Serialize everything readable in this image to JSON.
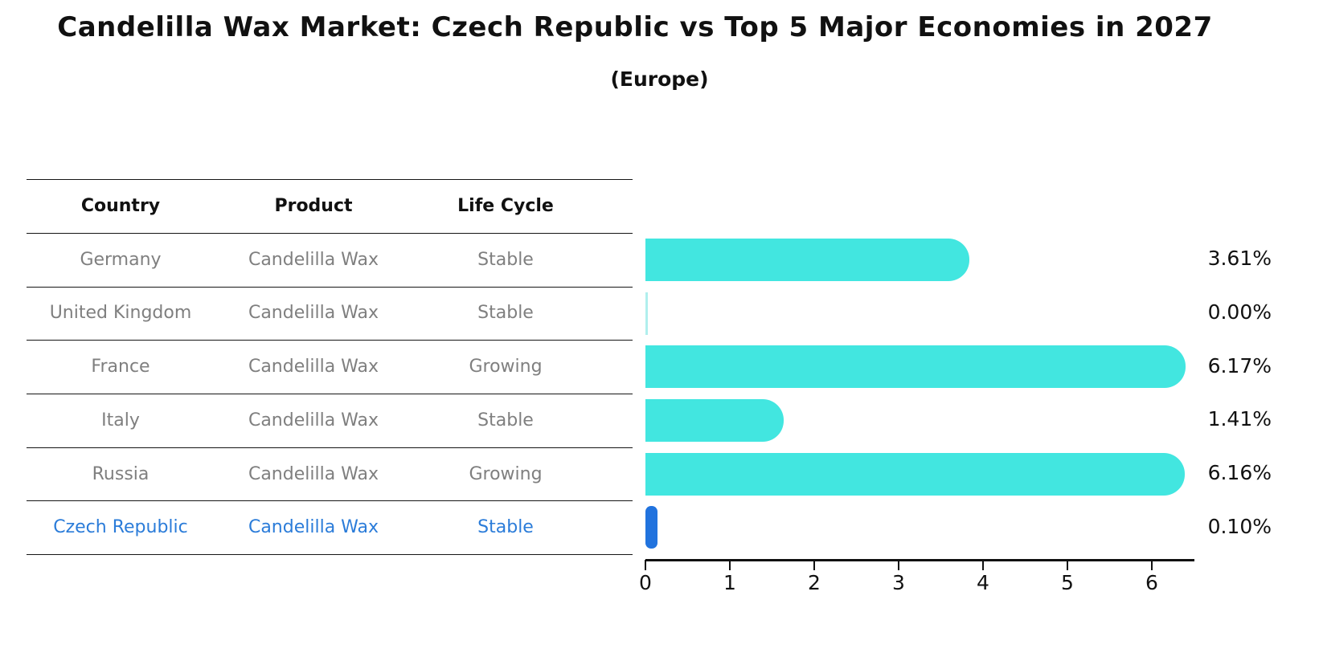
{
  "title": "Candelilla Wax Market: Czech Republic vs Top 5 Major Economies in 2027",
  "subtitle": "(Europe)",
  "table": {
    "headers": [
      "Country",
      "Product",
      "Life Cycle"
    ],
    "rows": [
      {
        "country": "Germany",
        "product": "Candelilla Wax",
        "life_cycle": "Stable",
        "highlight": false
      },
      {
        "country": "United Kingdom",
        "product": "Candelilla Wax",
        "life_cycle": "Stable",
        "highlight": false
      },
      {
        "country": "France",
        "product": "Candelilla Wax",
        "life_cycle": "Growing",
        "highlight": false
      },
      {
        "country": "Italy",
        "product": "Candelilla Wax",
        "life_cycle": "Stable",
        "highlight": false
      },
      {
        "country": "Russia",
        "product": "Candelilla Wax",
        "life_cycle": "Growing",
        "highlight": false
      },
      {
        "country": "Czech Republic",
        "product": "Candelilla Wax",
        "life_cycle": "Stable",
        "highlight": true
      }
    ]
  },
  "chart_data": {
    "type": "bar",
    "orientation": "horizontal",
    "title": "Candelilla Wax Market: Czech Republic vs Top 5 Major Economies in 2027",
    "subtitle": "(Europe)",
    "categories": [
      "Germany",
      "United Kingdom",
      "France",
      "Italy",
      "Russia",
      "Czech Republic"
    ],
    "values": [
      3.61,
      0.0,
      6.17,
      1.41,
      6.16,
      0.1
    ],
    "value_labels": [
      "3.61%",
      "0.00%",
      "6.17%",
      "1.41%",
      "6.16%",
      "0.10%"
    ],
    "xticks": [
      0,
      1,
      2,
      3,
      4,
      5,
      6
    ],
    "xlim": [
      0,
      6.5
    ],
    "grid": false,
    "legend": false,
    "bar_color": "#42e6e0",
    "highlight_color": "#2173de",
    "highlight_index": 5
  },
  "colors": {
    "background": "#ffffff",
    "row_text": "#7f7f7f",
    "header_text": "#111111",
    "highlight_text": "#2b7cd9",
    "line": "#151515"
  }
}
